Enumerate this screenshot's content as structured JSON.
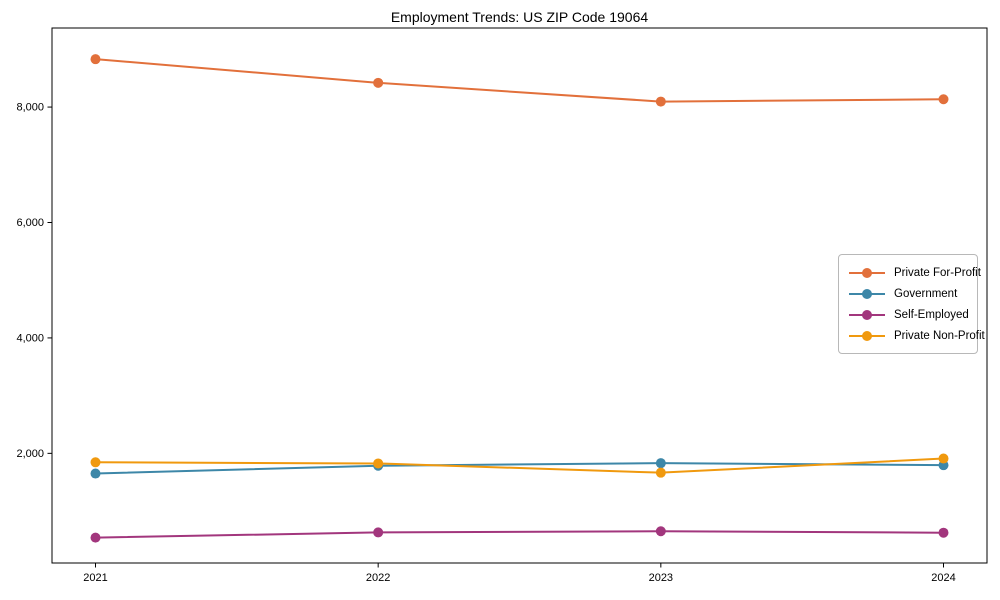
{
  "chart_data": {
    "type": "line",
    "title": "Employment Trends: US ZIP Code 19064",
    "x": [
      2021,
      2022,
      2023,
      2024
    ],
    "x_tick_labels": [
      "2021",
      "2022",
      "2023",
      "2024"
    ],
    "y_ticks": [
      2000,
      4000,
      6000,
      8000
    ],
    "y_tick_labels": [
      "2,000",
      "4,000",
      "6,000",
      "8,000"
    ],
    "ylim": [
      100,
      9370
    ],
    "grid": false,
    "legend_position": "center-right",
    "background_color": "#ffffff",
    "spine_color": "#000000",
    "series": [
      {
        "name": "Private For-Profit",
        "color": "#e2703b",
        "values": [
          8830,
          8420,
          8095,
          8135
        ]
      },
      {
        "name": "Government",
        "color": "#3d87a8",
        "values": [
          1650,
          1785,
          1830,
          1795
        ]
      },
      {
        "name": "Self-Employed",
        "color": "#a2367d",
        "values": [
          540,
          630,
          650,
          625
        ]
      },
      {
        "name": "Private Non-Profit",
        "color": "#f0990e",
        "values": [
          1845,
          1825,
          1665,
          1910
        ]
      }
    ]
  }
}
